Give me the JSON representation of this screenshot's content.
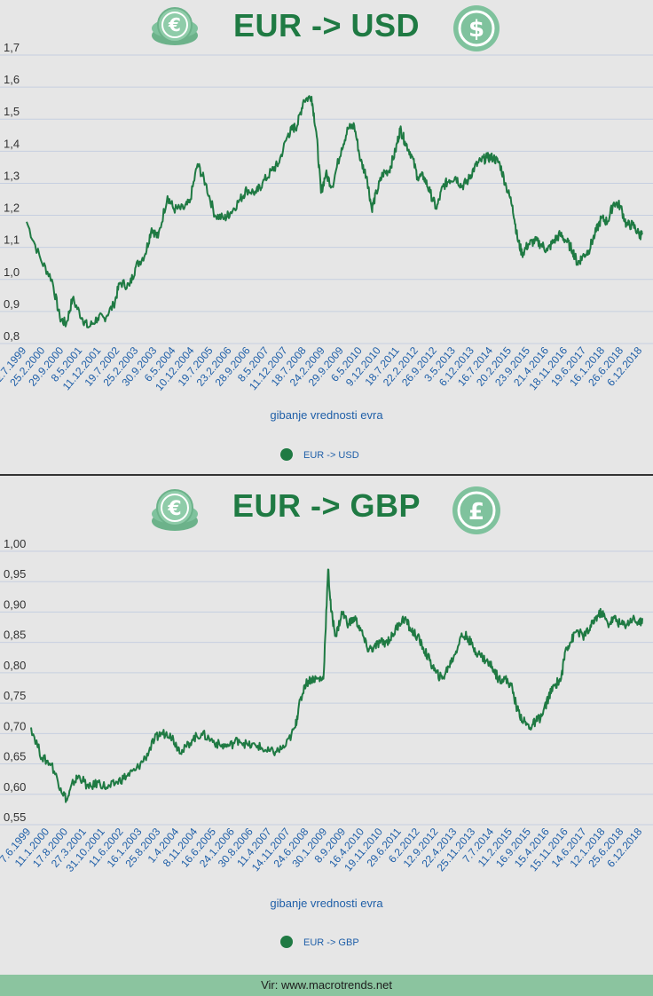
{
  "colors": {
    "line": "#1f7a43",
    "title": "#1f7a43",
    "coin": "#7fc29d",
    "tick_x": "#1f5fa8",
    "footer_bg": "#8bc49f"
  },
  "icons": [
    "euro-coin-icon",
    "dollar-coin-icon",
    "euro-coin-icon",
    "pound-coin-icon"
  ],
  "footer": "Vir: www.macrotrends.net",
  "chart_data": [
    {
      "type": "line",
      "title": "EUR -> USD",
      "xlabel": "gibanje vrednosti evra",
      "ylabel": "",
      "ylim": [
        0.8,
        1.7
      ],
      "y_ticks": [
        "0,8",
        "0,9",
        "1,0",
        "1,1",
        "1,2",
        "1,3",
        "1,4",
        "1,5",
        "1,6",
        "1,7"
      ],
      "x_ticks": [
        "22.7.1999",
        "25.2.2000",
        "29.9.2000",
        "8.5.2001",
        "11.12.2001",
        "19.7.2002",
        "25.2.2003",
        "30.9.2003",
        "6.5.2004",
        "10.12.2004",
        "19.7.2005",
        "23.2.2006",
        "28.9.2006",
        "8.5.2007",
        "11.12.2007",
        "18.7.2008",
        "24.2.2009",
        "29.9.2009",
        "6.5.2010",
        "9.12.2010",
        "18.7.2011",
        "22.2.2012",
        "26.9.2012",
        "3.5.2013",
        "6.12.2013",
        "16.7.2014",
        "20.2.2015",
        "23.9.2015",
        "21.4.2016",
        "18.11.2016",
        "19.6.2017",
        "16.1.2018",
        "26.6.2018",
        "6.12.2018"
      ],
      "grid": true,
      "legend_position": "bottom-center",
      "series": [
        {
          "name": "EUR -> USD",
          "x": [
            1999.55,
            2000.0,
            2000.35,
            2000.6,
            2000.8,
            2001.0,
            2001.3,
            2001.5,
            2001.8,
            2002.0,
            2002.3,
            2002.5,
            2002.8,
            2003.0,
            2003.3,
            2003.5,
            2003.7,
            2004.0,
            2004.2,
            2004.5,
            2004.7,
            2004.95,
            2005.2,
            2005.5,
            2005.8,
            2006.0,
            2006.3,
            2006.5,
            2006.8,
            2007.0,
            2007.3,
            2007.5,
            2007.8,
            2007.95,
            2008.1,
            2008.3,
            2008.55,
            2008.7,
            2008.85,
            2009.0,
            2009.2,
            2009.5,
            2009.7,
            2009.9,
            2010.1,
            2010.3,
            2010.45,
            2010.6,
            2010.8,
            2011.0,
            2011.2,
            2011.35,
            2011.5,
            2011.7,
            2011.9,
            2012.1,
            2012.3,
            2012.5,
            2012.7,
            2012.9,
            2013.1,
            2013.3,
            2013.5,
            2013.7,
            2013.9,
            2014.1,
            2014.3,
            2014.5,
            2014.7,
            2014.9,
            2015.05,
            2015.2,
            2015.4,
            2015.6,
            2015.8,
            2016.0,
            2016.2,
            2016.4,
            2016.6,
            2016.8,
            2016.95,
            2017.1,
            2017.3,
            2017.5,
            2017.7,
            2017.9,
            2018.1,
            2018.3,
            2018.5,
            2018.7,
            2018.9,
            2019.0
          ],
          "values": [
            1.18,
            1.06,
            1.0,
            0.88,
            0.86,
            0.94,
            0.88,
            0.85,
            0.88,
            0.88,
            0.92,
            0.99,
            0.98,
            1.04,
            1.08,
            1.16,
            1.13,
            1.26,
            1.22,
            1.22,
            1.24,
            1.36,
            1.3,
            1.2,
            1.19,
            1.21,
            1.25,
            1.28,
            1.27,
            1.3,
            1.34,
            1.36,
            1.45,
            1.47,
            1.48,
            1.56,
            1.57,
            1.46,
            1.27,
            1.33,
            1.29,
            1.41,
            1.47,
            1.48,
            1.37,
            1.32,
            1.22,
            1.27,
            1.33,
            1.34,
            1.4,
            1.47,
            1.43,
            1.39,
            1.32,
            1.32,
            1.27,
            1.22,
            1.29,
            1.31,
            1.32,
            1.29,
            1.31,
            1.35,
            1.37,
            1.38,
            1.38,
            1.36,
            1.29,
            1.23,
            1.13,
            1.08,
            1.11,
            1.12,
            1.11,
            1.09,
            1.12,
            1.14,
            1.12,
            1.09,
            1.05,
            1.07,
            1.09,
            1.14,
            1.19,
            1.18,
            1.24,
            1.23,
            1.17,
            1.17,
            1.14,
            1.14
          ]
        }
      ]
    },
    {
      "type": "line",
      "title": "EUR -> GBP",
      "xlabel": "gibanje vrednosti evra",
      "ylabel": "",
      "ylim": [
        0.55,
        1.0
      ],
      "y_ticks": [
        "0,55",
        "0,60",
        "0,65",
        "0,70",
        "0,75",
        "0,80",
        "0,85",
        "0,90",
        "0,95",
        "1,00"
      ],
      "x_ticks": [
        "7.6.1999",
        "11.1.2000",
        "17.8.2000",
        "27.3.2001",
        "31.10.2001",
        "11.6.2002",
        "16.1.2003",
        "25.8.2003",
        "1.4.2004",
        "8.11.2004",
        "16.6.2005",
        "24.1.2006",
        "30.8.2006",
        "11.4.2007",
        "14.11.2007",
        "24.6.2008",
        "30.1.2009",
        "8.9.2009",
        "16.4.2010",
        "19.11.2010",
        "29.6.2011",
        "6.2.2012",
        "12.9.2012",
        "22.4.2013",
        "25.11.2013",
        "7.7.2014",
        "11.2.2015",
        "16.9.2015",
        "15.4.2016",
        "15.11.2016",
        "14.6.2017",
        "12.1.2018",
        "25.6.2018",
        "6.12.2018"
      ],
      "grid": true,
      "legend_position": "bottom-center",
      "series": [
        {
          "name": "EUR -> GBP",
          "x": [
            1999.45,
            1999.8,
            2000.1,
            2000.4,
            2000.6,
            2000.8,
            2001.0,
            2001.3,
            2001.6,
            2001.9,
            2002.2,
            2002.5,
            2002.8,
            2003.1,
            2003.4,
            2003.6,
            2003.9,
            2004.1,
            2004.3,
            2004.6,
            2004.9,
            2005.2,
            2005.5,
            2005.8,
            2006.1,
            2006.4,
            2006.7,
            2007.0,
            2007.3,
            2007.6,
            2007.9,
            2008.0,
            2008.2,
            2008.4,
            2008.6,
            2008.8,
            2008.95,
            2009.05,
            2009.2,
            2009.4,
            2009.6,
            2009.8,
            2010.0,
            2010.2,
            2010.4,
            2010.6,
            2010.8,
            2011.0,
            2011.2,
            2011.4,
            2011.6,
            2011.8,
            2012.0,
            2012.2,
            2012.4,
            2012.6,
            2012.8,
            2013.0,
            2013.2,
            2013.4,
            2013.6,
            2013.8,
            2014.0,
            2014.2,
            2014.4,
            2014.6,
            2014.8,
            2015.0,
            2015.2,
            2015.4,
            2015.6,
            2015.8,
            2016.0,
            2016.2,
            2016.4,
            2016.55,
            2016.7,
            2016.9,
            2017.1,
            2017.3,
            2017.5,
            2017.7,
            2017.9,
            2018.1,
            2018.3,
            2018.5,
            2018.7,
            2018.9,
            2019.0
          ],
          "values": [
            0.71,
            0.66,
            0.65,
            0.61,
            0.59,
            0.62,
            0.63,
            0.61,
            0.62,
            0.61,
            0.62,
            0.63,
            0.64,
            0.66,
            0.69,
            0.7,
            0.7,
            0.68,
            0.67,
            0.69,
            0.7,
            0.69,
            0.68,
            0.68,
            0.69,
            0.68,
            0.68,
            0.67,
            0.67,
            0.68,
            0.71,
            0.74,
            0.78,
            0.79,
            0.79,
            0.79,
            0.97,
            0.9,
            0.86,
            0.9,
            0.88,
            0.89,
            0.87,
            0.84,
            0.84,
            0.85,
            0.85,
            0.86,
            0.88,
            0.89,
            0.87,
            0.86,
            0.84,
            0.82,
            0.8,
            0.79,
            0.81,
            0.83,
            0.86,
            0.86,
            0.84,
            0.83,
            0.82,
            0.81,
            0.79,
            0.79,
            0.78,
            0.74,
            0.72,
            0.71,
            0.72,
            0.73,
            0.76,
            0.78,
            0.79,
            0.84,
            0.85,
            0.87,
            0.86,
            0.87,
            0.89,
            0.9,
            0.88,
            0.89,
            0.88,
            0.88,
            0.89,
            0.88,
            0.89
          ]
        }
      ]
    }
  ]
}
